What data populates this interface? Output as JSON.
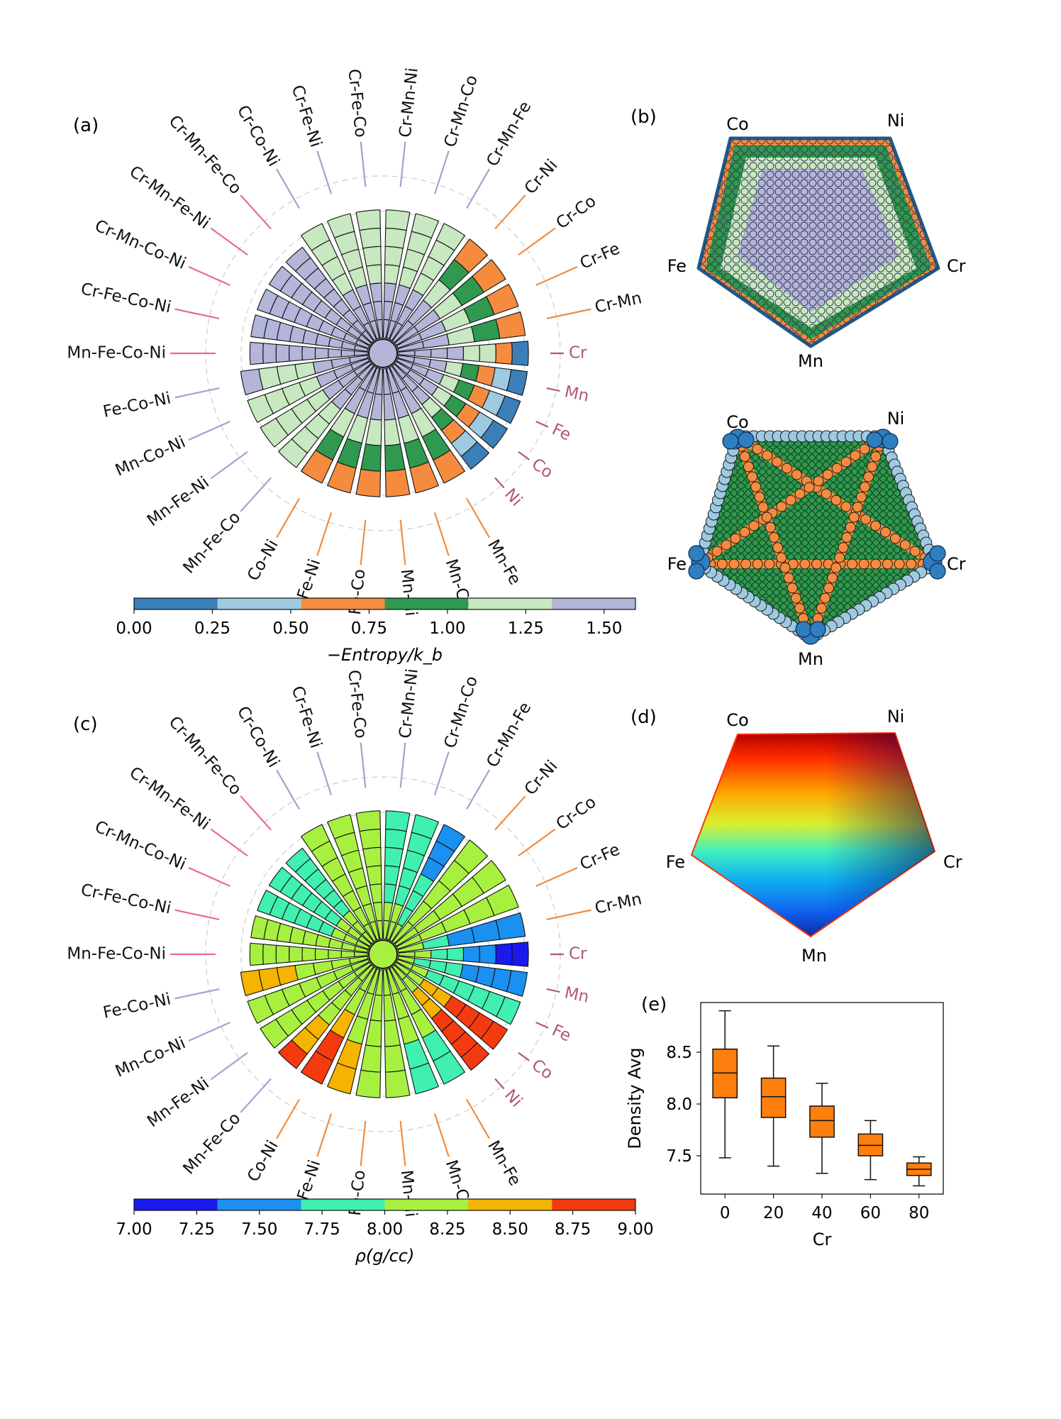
{
  "panels": {
    "a": "(a)",
    "b": "(b)",
    "c": "(c)",
    "d": "(d)",
    "e": "(e)"
  },
  "spokes": {
    "labels": [
      "Cr",
      "Cr-Mn",
      "Cr-Fe",
      "Cr-Co",
      "Cr-Ni",
      "Cr-Mn-Fe",
      "Cr-Mn-Co",
      "Cr-Mn-Ni",
      "Cr-Fe-Co",
      "Cr-Fe-Ni",
      "Cr-Co-Ni",
      "Cr-Mn-Fe-Co",
      "Cr-Mn-Fe-Ni",
      "Cr-Mn-Co-Ni",
      "Cr-Fe-Co-Ni",
      "Mn-Fe-Co-Ni",
      "Fe-Co-Ni",
      "Mn-Co-Ni",
      "Mn-Fe-Ni",
      "Mn-Fe-Co",
      "Co-Ni",
      "Fe-Ni",
      "Fe-Co",
      "Mn-Ni",
      "Mn-Co",
      "Mn-Fe",
      "Ni",
      "Co",
      "Fe",
      "Mn"
    ],
    "line_colors": {
      "unary": "#b05a6e",
      "binary": "#f28c3c",
      "ternary": "#a6a0cf",
      "quaternary": "#e8679e"
    }
  },
  "pentagon_vertices": [
    "Co",
    "Ni",
    "Cr",
    "Mn",
    "Fe"
  ],
  "chart_data": [
    {
      "id": "a",
      "type": "radial-stacked-bar",
      "colorbar_label": "−Entropy/k_b",
      "colorbar_ticks": [
        "0.00",
        "0.25",
        "0.50",
        "0.75",
        "1.00",
        "1.25",
        "1.50"
      ],
      "colorbar_range": [
        0.0,
        1.6
      ],
      "colorbar_colors": [
        "#3b7fb9",
        "#9ecae1",
        "#f58b3e",
        "#2f9a4f",
        "#c7e8c0",
        "#b3b5d9"
      ],
      "bin_edges": [
        0.0,
        0.267,
        0.533,
        0.8,
        1.067,
        1.333,
        1.6
      ],
      "center_value": 1.45,
      "segments_per_bar": [
        8,
        5,
        5,
        5,
        5,
        7,
        7,
        7,
        7,
        7,
        7,
        9,
        9,
        9,
        9,
        9,
        7,
        7,
        7,
        7,
        5,
        5,
        5,
        5,
        5,
        5,
        8,
        8,
        8,
        8
      ],
      "radii": [
        0.95,
        0.9,
        0.9,
        0.9,
        0.9,
        0.9,
        0.9,
        0.9,
        0.9,
        0.9,
        0.9,
        0.65,
        0.65,
        0.65,
        0.65,
        0.65,
        0.9,
        0.9,
        0.9,
        0.9,
        0.9,
        0.9,
        0.9,
        0.9,
        0.9,
        0.9,
        0.95,
        0.95,
        0.95,
        0.95
      ],
      "bar_values": [
        [
          1.5,
          1.5,
          1.45,
          1.4,
          1.3,
          1.1,
          0.7,
          0.2
        ],
        [
          1.5,
          1.45,
          1.1,
          0.9,
          0.7
        ],
        [
          1.5,
          1.45,
          1.1,
          0.9,
          0.7
        ],
        [
          1.5,
          1.45,
          1.1,
          0.9,
          0.7
        ],
        [
          1.5,
          1.45,
          1.1,
          0.9,
          0.7
        ],
        [
          1.5,
          1.45,
          1.4,
          1.3,
          1.2,
          1.15,
          1.1
        ],
        [
          1.5,
          1.45,
          1.4,
          1.3,
          1.2,
          1.15,
          1.1
        ],
        [
          1.5,
          1.45,
          1.4,
          1.3,
          1.2,
          1.15,
          1.1
        ],
        [
          1.5,
          1.45,
          1.4,
          1.3,
          1.2,
          1.15,
          1.1
        ],
        [
          1.5,
          1.45,
          1.4,
          1.3,
          1.2,
          1.15,
          1.1
        ],
        [
          1.5,
          1.45,
          1.4,
          1.3,
          1.2,
          1.15,
          1.1
        ],
        [
          1.55,
          1.5,
          1.5,
          1.45,
          1.45,
          1.4,
          1.4,
          1.4,
          1.35
        ],
        [
          1.55,
          1.5,
          1.5,
          1.45,
          1.45,
          1.4,
          1.4,
          1.4,
          1.35
        ],
        [
          1.55,
          1.5,
          1.5,
          1.45,
          1.45,
          1.4,
          1.4,
          1.4,
          1.35
        ],
        [
          1.55,
          1.5,
          1.5,
          1.45,
          1.45,
          1.4,
          1.4,
          1.4,
          1.35
        ],
        [
          1.55,
          1.5,
          1.5,
          1.45,
          1.45,
          1.4,
          1.4,
          1.4,
          1.35
        ],
        [
          1.5,
          1.45,
          1.4,
          1.3,
          1.2,
          1.15,
          1.4
        ],
        [
          1.5,
          1.45,
          1.4,
          1.3,
          1.2,
          1.15,
          1.1
        ],
        [
          1.5,
          1.45,
          1.4,
          1.3,
          1.2,
          1.15,
          1.1
        ],
        [
          1.5,
          1.45,
          1.4,
          1.3,
          1.2,
          1.15,
          1.1
        ],
        [
          1.5,
          1.45,
          1.1,
          0.9,
          0.7
        ],
        [
          1.5,
          1.45,
          1.1,
          0.9,
          0.7
        ],
        [
          1.5,
          1.45,
          1.1,
          0.9,
          0.7
        ],
        [
          1.5,
          1.45,
          1.1,
          0.9,
          0.7
        ],
        [
          1.5,
          1.45,
          1.1,
          0.9,
          0.7
        ],
        [
          1.5,
          1.45,
          1.1,
          0.9,
          0.7
        ],
        [
          1.5,
          1.45,
          1.4,
          1.2,
          1.0,
          0.7,
          0.4,
          0.1
        ],
        [
          1.5,
          1.45,
          1.4,
          1.2,
          1.0,
          0.7,
          0.4,
          0.1
        ],
        [
          1.5,
          1.45,
          1.4,
          1.2,
          1.0,
          0.7,
          0.4,
          0.1
        ],
        [
          1.5,
          1.45,
          1.4,
          1.2,
          1.0,
          0.7,
          0.4,
          0.1
        ]
      ]
    },
    {
      "id": "c",
      "type": "radial-stacked-bar",
      "colorbar_label": "ρ(g/cc)",
      "colorbar_ticks": [
        "7.00",
        "7.25",
        "7.50",
        "7.75",
        "8.00",
        "8.25",
        "8.50",
        "8.75",
        "9.00"
      ],
      "colorbar_range": [
        7.0,
        9.0
      ],
      "colorbar_colors": [
        "#1a1af0",
        "#1a90f0",
        "#40f0b0",
        "#a8f040",
        "#f5b400",
        "#f53a10"
      ],
      "bin_edges": [
        7.0,
        7.333,
        7.667,
        8.0,
        8.333,
        8.667,
        9.0
      ],
      "center_value": 8.1,
      "segments_per_bar": [
        8,
        5,
        5,
        5,
        5,
        7,
        7,
        7,
        7,
        7,
        7,
        9,
        9,
        9,
        9,
        9,
        7,
        7,
        7,
        7,
        5,
        5,
        5,
        5,
        5,
        5,
        8,
        8,
        8,
        8
      ],
      "radii": [
        0.95,
        0.9,
        0.9,
        0.9,
        0.9,
        0.9,
        0.9,
        0.9,
        0.9,
        0.9,
        0.9,
        0.65,
        0.65,
        0.65,
        0.65,
        0.65,
        0.9,
        0.9,
        0.9,
        0.9,
        0.9,
        0.9,
        0.9,
        0.9,
        0.9,
        0.9,
        0.95,
        0.95,
        0.95,
        0.95
      ],
      "bar_values": [
        [
          8.1,
          8.0,
          7.9,
          7.8,
          7.6,
          7.4,
          7.2,
          7.1
        ],
        [
          8.1,
          7.8,
          7.6,
          7.5,
          7.4
        ],
        [
          8.1,
          8.1,
          8.1,
          8.05,
          8.05
        ],
        [
          8.1,
          8.1,
          8.1,
          8.1,
          8.1
        ],
        [
          8.1,
          8.1,
          8.1,
          8.1,
          8.1
        ],
        [
          8.1,
          7.9,
          7.8,
          7.7,
          7.6,
          7.5,
          7.5
        ],
        [
          8.1,
          8.0,
          7.9,
          7.8,
          7.8,
          7.8,
          7.8
        ],
        [
          8.1,
          8.0,
          7.9,
          7.9,
          7.8,
          7.8,
          7.8
        ],
        [
          8.1,
          8.1,
          8.1,
          8.1,
          8.1,
          8.1,
          8.1
        ],
        [
          8.1,
          8.1,
          8.1,
          8.1,
          8.1,
          8.1,
          8.1
        ],
        [
          8.1,
          8.1,
          8.1,
          8.1,
          8.1,
          8.1,
          8.1
        ],
        [
          8.1,
          8.0,
          8.0,
          7.9,
          7.9,
          7.9,
          7.8,
          7.8,
          7.8
        ],
        [
          8.1,
          8.0,
          8.0,
          7.9,
          7.9,
          7.9,
          7.8,
          7.8,
          7.8
        ],
        [
          8.1,
          8.0,
          8.0,
          7.9,
          7.9,
          7.9,
          7.8,
          7.8,
          7.8
        ],
        [
          8.1,
          8.1,
          8.1,
          8.1,
          8.1,
          8.1,
          8.1,
          8.1,
          8.1
        ],
        [
          8.1,
          8.1,
          8.1,
          8.1,
          8.1,
          8.1,
          8.1,
          8.1,
          8.1
        ],
        [
          8.1,
          8.2,
          8.3,
          8.3,
          8.4,
          8.4,
          8.4
        ],
        [
          8.1,
          8.1,
          8.1,
          8.2,
          8.2,
          8.2,
          8.2
        ],
        [
          8.1,
          8.1,
          8.1,
          8.2,
          8.2,
          8.2,
          8.2
        ],
        [
          8.1,
          8.1,
          8.2,
          8.3,
          8.4,
          8.5,
          8.7
        ],
        [
          8.1,
          8.3,
          8.5,
          8.7,
          8.8
        ],
        [
          8.1,
          8.2,
          8.3,
          8.4,
          8.5
        ],
        [
          8.1,
          8.1,
          8.1,
          8.1,
          8.1
        ],
        [
          8.1,
          8.1,
          8.1,
          8.1,
          8.1
        ],
        [
          8.1,
          8.0,
          8.0,
          7.9,
          7.9
        ],
        [
          8.1,
          8.0,
          8.0,
          7.9,
          7.8
        ],
        [
          8.1,
          8.3,
          8.5,
          8.6,
          8.7,
          8.8,
          8.9,
          8.9
        ],
        [
          8.1,
          8.3,
          8.5,
          8.6,
          8.7,
          8.8,
          8.9,
          8.9
        ],
        [
          8.1,
          8.0,
          7.9,
          7.9,
          7.8,
          7.8,
          7.8,
          7.8
        ],
        [
          8.1,
          7.9,
          7.8,
          7.7,
          7.6,
          7.5,
          7.5,
          7.5
        ]
      ]
    },
    {
      "id": "e",
      "type": "box",
      "xlabel": "Cr",
      "ylabel": "Density Avg",
      "categories": [
        "0",
        "20",
        "40",
        "60",
        "80"
      ],
      "ylim": [
        7.13,
        8.98
      ],
      "yticks": [
        "7.5",
        "8.0",
        "8.5"
      ],
      "box_color": "#ff7f0e",
      "boxes": [
        {
          "min": 7.48,
          "q1": 8.06,
          "median": 8.3,
          "q3": 8.53,
          "max": 8.9
        },
        {
          "min": 7.4,
          "q1": 7.87,
          "median": 8.07,
          "q3": 8.25,
          "max": 8.56
        },
        {
          "min": 7.33,
          "q1": 7.68,
          "median": 7.84,
          "q3": 7.98,
          "max": 8.2
        },
        {
          "min": 7.27,
          "q1": 7.5,
          "median": 7.6,
          "q3": 7.71,
          "max": 7.84
        },
        {
          "min": 7.21,
          "q1": 7.31,
          "median": 7.37,
          "q3": 7.43,
          "max": 7.49
        }
      ]
    }
  ]
}
